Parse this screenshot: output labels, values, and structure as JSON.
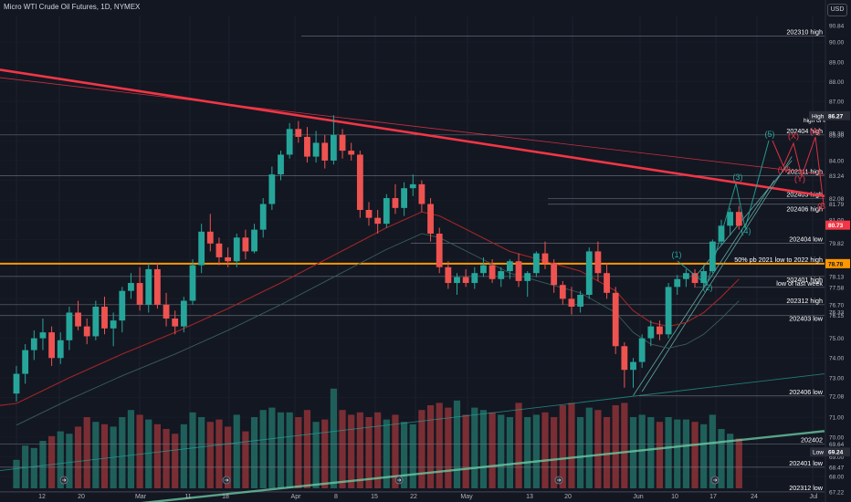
{
  "header": {
    "title": "Micro WTI Crude Oil Futures, 1D, NYMEX",
    "currency": "USD"
  },
  "colors": {
    "background": "#131722",
    "bull": "#26a69a",
    "bear": "#ef5350",
    "volume_bull": "#1f5f5a",
    "volume_bear": "#7a2e33",
    "trendline": "#f23645",
    "fib_line": "#ff9800",
    "wave_green": "#26a69a",
    "wave_red": "#f23645",
    "ma_line": "#a02626",
    "level_line": "#787b86",
    "axis_text": "#b2b5be"
  },
  "chart_data": {
    "type": "candlestick",
    "timeframe": "1D",
    "ylim": [
      66.8,
      91.3
    ],
    "yticks": [
      67.22,
      68.0,
      68.47,
      69.0,
      69.24,
      69.64,
      70.0,
      71.0,
      72.08,
      73.0,
      74.0,
      75.0,
      76.15,
      76.33,
      76.7,
      77.58,
      78.13,
      78.78,
      79.82,
      80.73,
      81.0,
      81.79,
      82.08,
      83.24,
      84.0,
      85.3,
      85.38,
      86.27,
      87.0,
      88.0,
      89.0,
      90.0,
      90.84
    ],
    "xticks": [
      "12",
      "20",
      "Mar",
      "11",
      "18",
      "Apr",
      "8",
      "15",
      "22",
      "May",
      "13",
      "20",
      "Jun",
      "10",
      "17",
      "24",
      "Jul"
    ],
    "candles": [
      [
        0,
        72.2,
        73.6,
        71.8,
        73.2
      ],
      [
        1,
        73.2,
        74.7,
        72.7,
        74.4
      ],
      [
        2,
        74.4,
        75.4,
        73.9,
        75.0
      ],
      [
        3,
        75.0,
        76.0,
        74.4,
        75.3
      ],
      [
        4,
        75.3,
        75.6,
        73.6,
        74.0
      ],
      [
        5,
        74.0,
        75.3,
        73.7,
        74.9
      ],
      [
        6,
        74.9,
        76.6,
        74.4,
        76.3
      ],
      [
        7,
        76.3,
        76.9,
        75.4,
        75.6
      ],
      [
        8,
        75.6,
        76.0,
        74.7,
        75.1
      ],
      [
        9,
        75.1,
        76.9,
        74.9,
        76.6
      ],
      [
        10,
        76.6,
        77.1,
        75.2,
        75.5
      ],
      [
        11,
        75.5,
        76.3,
        74.6,
        75.9
      ],
      [
        12,
        75.9,
        77.6,
        75.3,
        77.4
      ],
      [
        13,
        77.4,
        78.3,
        77.0,
        77.8
      ],
      [
        14,
        77.8,
        78.6,
        76.4,
        76.7
      ],
      [
        15,
        76.7,
        78.8,
        76.3,
        78.5
      ],
      [
        16,
        78.5,
        78.8,
        76.5,
        76.7
      ],
      [
        17,
        76.7,
        77.3,
        75.6,
        76.0
      ],
      [
        18,
        76.0,
        76.4,
        75.2,
        75.6
      ],
      [
        19,
        75.6,
        77.1,
        75.3,
        76.9
      ],
      [
        20,
        76.9,
        79.0,
        76.7,
        78.7
      ],
      [
        21,
        78.7,
        80.8,
        78.3,
        80.4
      ],
      [
        22,
        80.4,
        81.3,
        79.4,
        79.8
      ],
      [
        23,
        79.8,
        80.1,
        78.7,
        79.1
      ],
      [
        24,
        79.1,
        79.6,
        78.6,
        78.9
      ],
      [
        25,
        78.9,
        80.3,
        78.6,
        80.1
      ],
      [
        26,
        80.1,
        80.5,
        79.0,
        79.4
      ],
      [
        27,
        79.4,
        80.8,
        79.3,
        80.5
      ],
      [
        28,
        80.5,
        82.1,
        80.1,
        81.8
      ],
      [
        29,
        81.8,
        83.7,
        81.5,
        83.3
      ],
      [
        30,
        83.3,
        84.5,
        83.0,
        84.3
      ],
      [
        31,
        84.3,
        85.9,
        84.1,
        85.6
      ],
      [
        32,
        85.6,
        86.0,
        84.9,
        85.2
      ],
      [
        33,
        85.2,
        85.7,
        83.9,
        84.2
      ],
      [
        34,
        84.2,
        85.5,
        83.9,
        84.9
      ],
      [
        35,
        84.9,
        85.3,
        83.6,
        84.0
      ],
      [
        36,
        84.0,
        86.3,
        83.8,
        85.3
      ],
      [
        37,
        85.3,
        85.6,
        84.1,
        84.5
      ],
      [
        38,
        84.5,
        84.9,
        84.0,
        84.3
      ],
      [
        39,
        84.3,
        84.5,
        81.1,
        81.5
      ],
      [
        40,
        81.5,
        81.9,
        80.7,
        81.1
      ],
      [
        41,
        81.1,
        81.5,
        80.3,
        80.8
      ],
      [
        42,
        80.8,
        82.3,
        80.6,
        82.1
      ],
      [
        43,
        82.1,
        82.8,
        81.3,
        81.6
      ],
      [
        44,
        81.6,
        82.9,
        81.2,
        82.6
      ],
      [
        45,
        82.6,
        83.3,
        82.2,
        82.8
      ],
      [
        46,
        82.8,
        83.0,
        81.4,
        81.8
      ],
      [
        47,
        81.8,
        82.1,
        79.9,
        80.3
      ],
      [
        48,
        80.3,
        80.6,
        78.3,
        78.6
      ],
      [
        49,
        78.6,
        78.9,
        77.5,
        77.8
      ],
      [
        50,
        77.8,
        78.3,
        77.2,
        78.1
      ],
      [
        51,
        78.1,
        78.5,
        77.6,
        77.8
      ],
      [
        52,
        77.8,
        78.6,
        77.5,
        78.3
      ],
      [
        53,
        78.3,
        79.1,
        78.1,
        78.7
      ],
      [
        54,
        78.7,
        79.0,
        77.8,
        78.0
      ],
      [
        55,
        78.0,
        78.6,
        77.6,
        78.4
      ],
      [
        56,
        78.4,
        79.0,
        78.0,
        78.9
      ],
      [
        57,
        78.9,
        79.3,
        77.6,
        77.9
      ],
      [
        58,
        77.9,
        78.4,
        77.1,
        78.3
      ],
      [
        59,
        78.3,
        79.4,
        78.1,
        79.3
      ],
      [
        60,
        79.3,
        79.9,
        78.5,
        78.8
      ],
      [
        61,
        78.8,
        79.0,
        77.3,
        77.7
      ],
      [
        62,
        77.7,
        77.9,
        76.7,
        77.0
      ],
      [
        63,
        77.0,
        77.6,
        76.2,
        76.6
      ],
      [
        64,
        76.6,
        77.4,
        76.3,
        77.2
      ],
      [
        65,
        77.2,
        79.6,
        77.0,
        79.4
      ],
      [
        66,
        79.4,
        79.9,
        77.9,
        78.3
      ],
      [
        67,
        78.3,
        78.8,
        77.0,
        77.3
      ],
      [
        68,
        77.3,
        77.6,
        74.2,
        74.6
      ],
      [
        69,
        74.6,
        74.8,
        72.5,
        73.4
      ],
      [
        70,
        73.4,
        74.0,
        72.5,
        73.8
      ],
      [
        71,
        73.8,
        75.2,
        73.5,
        75.0
      ],
      [
        72,
        75.0,
        75.9,
        74.6,
        75.6
      ],
      [
        73,
        75.6,
        75.9,
        74.9,
        75.2
      ],
      [
        74,
        75.2,
        77.8,
        75.0,
        77.6
      ],
      [
        75,
        77.6,
        78.2,
        77.2,
        78.0
      ],
      [
        76,
        78.0,
        78.5,
        77.6,
        78.3
      ],
      [
        77,
        78.3,
        78.5,
        77.6,
        77.8
      ],
      [
        78,
        77.8,
        78.7,
        77.5,
        78.4
      ],
      [
        79,
        78.4,
        80.0,
        78.3,
        79.9
      ],
      [
        80,
        79.9,
        81.0,
        79.7,
        80.7
      ],
      [
        81,
        80.7,
        81.6,
        80.2,
        81.4
      ],
      [
        82,
        81.4,
        81.7,
        80.5,
        80.7
      ]
    ],
    "volumes": [
      [
        0,
        12,
        "bull"
      ],
      [
        1,
        18,
        "bull"
      ],
      [
        2,
        17,
        "bull"
      ],
      [
        3,
        20,
        "bull"
      ],
      [
        4,
        22,
        "bear"
      ],
      [
        5,
        24,
        "bull"
      ],
      [
        6,
        23,
        "bull"
      ],
      [
        7,
        26,
        "bear"
      ],
      [
        8,
        30,
        "bear"
      ],
      [
        9,
        28,
        "bull"
      ],
      [
        10,
        27,
        "bear"
      ],
      [
        11,
        26,
        "bull"
      ],
      [
        12,
        30,
        "bull"
      ],
      [
        13,
        33,
        "bull"
      ],
      [
        14,
        31,
        "bear"
      ],
      [
        15,
        29,
        "bull"
      ],
      [
        16,
        27,
        "bear"
      ],
      [
        17,
        25,
        "bear"
      ],
      [
        18,
        23,
        "bear"
      ],
      [
        19,
        27,
        "bull"
      ],
      [
        20,
        32,
        "bull"
      ],
      [
        21,
        30,
        "bull"
      ],
      [
        22,
        28,
        "bear"
      ],
      [
        23,
        29,
        "bear"
      ],
      [
        24,
        26,
        "bear"
      ],
      [
        25,
        31,
        "bull"
      ],
      [
        26,
        24,
        "bear"
      ],
      [
        27,
        30,
        "bull"
      ],
      [
        28,
        33,
        "bull"
      ],
      [
        29,
        34,
        "bull"
      ],
      [
        30,
        32,
        "bull"
      ],
      [
        31,
        32,
        "bull"
      ],
      [
        32,
        30,
        "bear"
      ],
      [
        33,
        33,
        "bear"
      ],
      [
        34,
        28,
        "bull"
      ],
      [
        35,
        29,
        "bear"
      ],
      [
        36,
        42,
        "bull"
      ],
      [
        37,
        33,
        "bear"
      ],
      [
        38,
        31,
        "bear"
      ],
      [
        39,
        32,
        "bear"
      ],
      [
        40,
        30,
        "bear"
      ],
      [
        41,
        32,
        "bear"
      ],
      [
        42,
        29,
        "bull"
      ],
      [
        43,
        31,
        "bear"
      ],
      [
        44,
        28,
        "bull"
      ],
      [
        45,
        27,
        "bull"
      ],
      [
        46,
        33,
        "bear"
      ],
      [
        47,
        35,
        "bear"
      ],
      [
        48,
        36,
        "bear"
      ],
      [
        49,
        34,
        "bear"
      ],
      [
        50,
        37,
        "bull"
      ],
      [
        51,
        31,
        "bear"
      ],
      [
        52,
        34,
        "bull"
      ],
      [
        53,
        33,
        "bull"
      ],
      [
        54,
        32,
        "bear"
      ],
      [
        55,
        31,
        "bull"
      ],
      [
        56,
        30,
        "bull"
      ],
      [
        57,
        36,
        "bear"
      ],
      [
        58,
        30,
        "bull"
      ],
      [
        59,
        31,
        "bull"
      ],
      [
        60,
        32,
        "bear"
      ],
      [
        61,
        30,
        "bear"
      ],
      [
        62,
        35,
        "bear"
      ],
      [
        63,
        36,
        "bear"
      ],
      [
        64,
        30,
        "bull"
      ],
      [
        65,
        34,
        "bull"
      ],
      [
        66,
        33,
        "bear"
      ],
      [
        67,
        30,
        "bear"
      ],
      [
        68,
        35,
        "bear"
      ],
      [
        69,
        36,
        "bear"
      ],
      [
        70,
        30,
        "bull"
      ],
      [
        71,
        31,
        "bull"
      ],
      [
        72,
        30,
        "bull"
      ],
      [
        73,
        28,
        "bear"
      ],
      [
        74,
        30,
        "bull"
      ],
      [
        75,
        29,
        "bull"
      ],
      [
        76,
        29,
        "bull"
      ],
      [
        77,
        28,
        "bear"
      ],
      [
        78,
        27,
        "bull"
      ],
      [
        79,
        31,
        "bull"
      ],
      [
        80,
        25,
        "bull"
      ],
      [
        81,
        23,
        "bull"
      ],
      [
        82,
        21,
        "bear"
      ]
    ],
    "moving_average": [
      [
        0,
        71.7
      ],
      [
        6,
        73.0
      ],
      [
        12,
        74.2
      ],
      [
        18,
        75.3
      ],
      [
        24,
        76.5
      ],
      [
        30,
        77.8
      ],
      [
        36,
        79.2
      ],
      [
        42,
        80.6
      ],
      [
        46,
        81.4
      ],
      [
        48,
        81.2
      ],
      [
        52,
        80.3
      ],
      [
        56,
        79.4
      ],
      [
        60,
        78.9
      ],
      [
        64,
        78.4
      ],
      [
        68,
        77.4
      ],
      [
        70,
        76.4
      ],
      [
        72,
        75.8
      ],
      [
        74,
        75.6
      ],
      [
        76,
        75.8
      ],
      [
        78,
        76.3
      ],
      [
        80,
        77.1
      ],
      [
        82,
        78.0
      ]
    ],
    "level_lines": [
      {
        "label": "202310 high",
        "value": 90.3
      },
      {
        "label": "202404 high",
        "value": 85.3
      },
      {
        "label": "202311 high",
        "value": 83.24
      },
      {
        "label": "202403 high",
        "value": 82.08
      },
      {
        "label": "202406 high",
        "value": 81.79
      },
      {
        "label": "202404 low",
        "value": 79.82
      },
      {
        "label": "50% pb 2021 low to 2022 high",
        "value": 78.78
      },
      {
        "label": "202401 high",
        "value": 78.13
      },
      {
        "label": "low of last week",
        "value": 77.58
      },
      {
        "label": "202312 high",
        "value": 76.7
      },
      {
        "label": "202403 low",
        "value": 76.15
      },
      {
        "label": "202406 low",
        "value": 72.08
      },
      {
        "label": "202402",
        "value": 69.64
      },
      {
        "label": "202401 low",
        "value": 68.47
      },
      {
        "label": "202312 low",
        "value": 67.22
      }
    ],
    "high_label": "High",
    "high_value": "86.27",
    "last_price": "80.73",
    "orange_price": "78.78",
    "low_label": "Low",
    "low_value": "69.24",
    "right_label_1": "high of la",
    "waves": {
      "green_labels": [
        "(1)",
        "(2)",
        "(3)",
        "(4)",
        "(5)"
      ],
      "red_labels": [
        "(W)",
        "(X)",
        "(Y)",
        "(A)",
        "(B)"
      ]
    }
  }
}
